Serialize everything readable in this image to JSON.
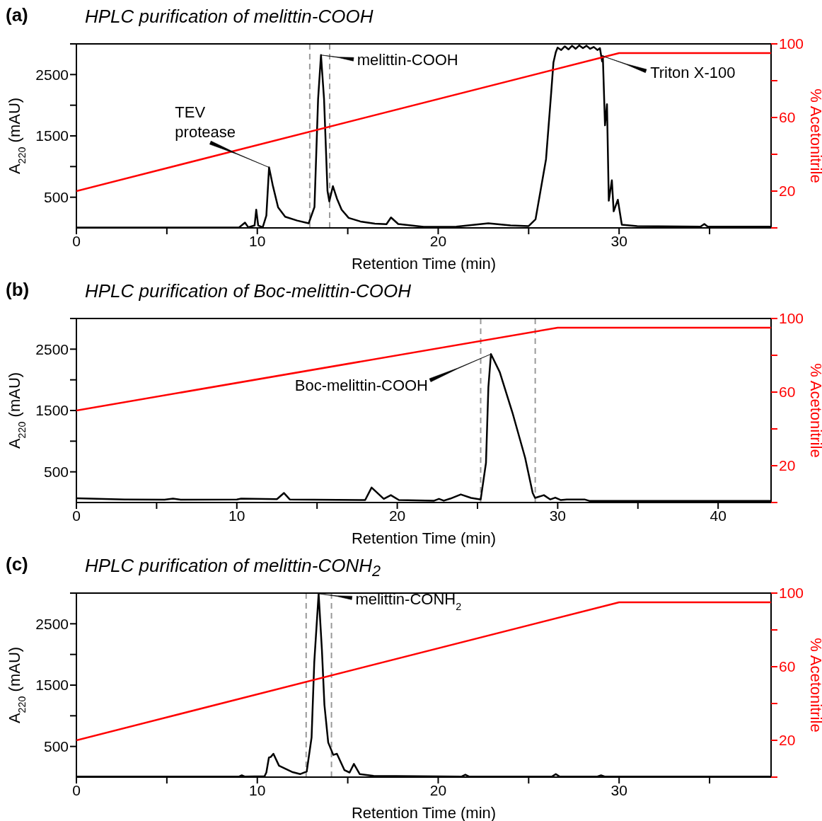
{
  "chart_data": [
    {
      "type": "line",
      "title": "HPLC purification of melittin-COOH",
      "xlabel": "Retention Time (min)",
      "ylabel": "A$_{220}$ (mAU)",
      "y2label": "% Acetonitrile",
      "marker": "none",
      "xlim": [
        0,
        38.4
      ],
      "xticks": [
        0,
        {
          "value": 5,
          "label": null
        },
        10,
        {
          "value": 15,
          "label": null
        },
        20,
        {
          "value": 25,
          "label": null
        },
        30,
        {
          "value": 35,
          "label": null
        }
      ],
      "ylim": [
        0,
        3000
      ],
      "yticks": [
        500,
        {
          "value": 1000,
          "label": null
        },
        1500,
        {
          "value": 2000,
          "label": null
        },
        2500,
        {
          "value": 3000,
          "label": null
        }
      ],
      "y2lim": [
        0,
        100
      ],
      "y2ticks": [
        {
          "value": 0,
          "label": null
        },
        20,
        {
          "value": 40,
          "label": null
        },
        60,
        {
          "value": 80,
          "label": null
        },
        100
      ],
      "series": [
        {
          "color": "#000000",
          "x": [
            0,
            5,
            9.0,
            9.32,
            9.5,
            9.85,
            9.94,
            10.05,
            10.3,
            10.5,
            10.65,
            10.85,
            11.15,
            11.54,
            12.2,
            12.84,
            13.16,
            13.36,
            13.52,
            13.69,
            13.88,
            13.98,
            14.18,
            14.4,
            14.66,
            15.05,
            15.7,
            16.5,
            17.14,
            17.39,
            17.79,
            19.2,
            21,
            22.77,
            24,
            25,
            25.38,
            25.96,
            26.25,
            26.37,
            26.5,
            26.6,
            26.8,
            27.0,
            27.2,
            27.4,
            27.6,
            27.8,
            28.0,
            28.2,
            28.4,
            28.6,
            28.8,
            28.94,
            29.06,
            29.1,
            29.22,
            29.33,
            29.43,
            29.6,
            29.7,
            29.93,
            30.15,
            31,
            34.5,
            34.71,
            34.9,
            38.4
          ],
          "values": [
            5,
            5,
            8,
            86,
            10,
            40,
            297,
            40,
            10,
            200,
            986,
            700,
            335,
            182,
            120,
            75,
            340,
            2098,
            2818,
            2098,
            603,
            431,
            680,
            480,
            297,
            163,
            105,
            70,
            60,
            170,
            63,
            17,
            20,
            75,
            40,
            30,
            140,
            1120,
            2223,
            2696,
            2865,
            2940,
            2900,
            2960,
            2910,
            2970,
            2920,
            2975,
            2930,
            2970,
            2920,
            2950,
            2900,
            2930,
            2715,
            2800,
            1672,
            2017,
            443,
            776,
            270,
            459,
            52,
            30,
            20,
            63,
            20,
            20
          ]
        },
        {
          "color": "#ff0000",
          "axis": "y2",
          "x": [
            0,
            30,
            38.4
          ],
          "values": [
            20,
            95,
            95
          ]
        }
      ],
      "ref_lines": [
        {
          "axis": "x",
          "value": 12.9,
          "color": "#999999",
          "line_style": "dashed"
        },
        {
          "axis": "x",
          "value": 14.0,
          "color": "#999999",
          "line_style": "dashed"
        }
      ],
      "annotations": [
        "(a)",
        {
          "text": "TEV\nprotease",
          "x": 10.65,
          "y": 986
        },
        {
          "text": "melittin-COOH",
          "x": 13.52,
          "y": 2818
        },
        {
          "text": "Triton X-100",
          "x": 29.1,
          "y": 2800
        }
      ]
    },
    {
      "type": "line",
      "title": "HPLC purification of Boc-melittin-COOH",
      "xlabel": "Retention Time (min)",
      "ylabel": "A$_{220}$ (mAU)",
      "y2label": "% Acetonitrile",
      "marker": "none",
      "xlim": [
        0,
        43.3
      ],
      "xticks": [
        0,
        {
          "value": 5,
          "label": null
        },
        10,
        {
          "value": 15,
          "label": null
        },
        20,
        {
          "value": 25,
          "label": null
        },
        30,
        {
          "value": 35,
          "label": null
        },
        40
      ],
      "ylim": [
        0,
        3000
      ],
      "yticks": [
        500,
        {
          "value": 1000,
          "label": null
        },
        1500,
        {
          "value": 2000,
          "label": null
        },
        2500,
        {
          "value": 3000,
          "label": null
        }
      ],
      "y2lim": [
        0,
        100
      ],
      "y2ticks": [
        {
          "value": 0,
          "label": null
        },
        20,
        {
          "value": 40,
          "label": null
        },
        60,
        {
          "value": 80,
          "label": null
        },
        100
      ],
      "series": [
        {
          "color": "#000000",
          "x": [
            0,
            3,
            5.5,
            6.02,
            6.5,
            10,
            10.27,
            12.5,
            12.94,
            13.3,
            18,
            18.4,
            19.16,
            19.6,
            20.1,
            22.3,
            22.6,
            22.9,
            23.3,
            23.96,
            24.6,
            25.2,
            25.53,
            25.68,
            25.84,
            26.39,
            27.18,
            27.97,
            28.44,
            28.59,
            29.14,
            29.54,
            29.85,
            30.2,
            30.56,
            31.67,
            32,
            43.3
          ],
          "values": [
            70,
            50,
            45,
            63,
            45,
            50,
            63,
            55,
            155,
            50,
            40,
            244,
            60,
            120,
            40,
            30,
            60,
            30,
            63,
            132,
            75,
            50,
            646,
            1880,
            2420,
            2124,
            1465,
            730,
            155,
            75,
            120,
            50,
            80,
            40,
            50,
            50,
            25,
            25
          ]
        },
        {
          "color": "#ff0000",
          "axis": "y2",
          "x": [
            0,
            30,
            43.3
          ],
          "values": [
            50,
            95,
            95
          ]
        }
      ],
      "ref_lines": [
        {
          "axis": "x",
          "value": 25.2,
          "color": "#999999",
          "line_style": "dashed"
        },
        {
          "axis": "x",
          "value": 28.6,
          "color": "#999999",
          "line_style": "dashed"
        }
      ],
      "annotations": [
        "(b)",
        {
          "text": "Boc-melittin-COOH",
          "x": 25.84,
          "y": 2420
        }
      ]
    },
    {
      "type": "line",
      "title": "HPLC purification of melittin-CONH$_{2}$",
      "xlabel": "Retention Time (min)",
      "ylabel": "A$_{220}$ (mAU)",
      "y2label": "% Acetonitrile",
      "marker": "none",
      "xlim": [
        0,
        38.4
      ],
      "xticks": [
        0,
        {
          "value": 5,
          "label": null
        },
        10,
        {
          "value": 15,
          "label": null
        },
        20,
        {
          "value": 25,
          "label": null
        },
        30,
        {
          "value": 35,
          "label": null
        }
      ],
      "ylim": [
        0,
        3000
      ],
      "yticks": [
        500,
        {
          "value": 1000,
          "label": null
        },
        1500,
        {
          "value": 2000,
          "label": null
        },
        2500,
        {
          "value": 3000,
          "label": null
        }
      ],
      "y2lim": [
        0,
        100
      ],
      "y2ticks": [
        {
          "value": 0,
          "label": null
        },
        20,
        {
          "value": 40,
          "label": null
        },
        60,
        {
          "value": 80,
          "label": null
        },
        100
      ],
      "series": [
        {
          "color": "#000000",
          "x": [
            0,
            9,
            9.14,
            9.3,
            10.4,
            10.5,
            10.64,
            10.75,
            10.89,
            11.2,
            11.96,
            12.38,
            12.73,
            13.0,
            13.15,
            13.39,
            13.57,
            13.71,
            13.92,
            14.2,
            14.4,
            14.82,
            15.1,
            15.34,
            15.66,
            16.43,
            21.3,
            21.5,
            21.7,
            26.3,
            26.5,
            26.7,
            28.8,
            29,
            29.2,
            38.4
          ],
          "values": [
            10,
            10,
            30,
            10,
            15,
            75,
            317,
            330,
            380,
            186,
            80,
            50,
            90,
            646,
            1880,
            2990,
            2083,
            1179,
            564,
            362,
            380,
            113,
            75,
            215,
            50,
            20,
            10,
            40,
            10,
            10,
            50,
            10,
            10,
            30,
            10,
            10
          ]
        },
        {
          "color": "#ff0000",
          "axis": "y2",
          "x": [
            0,
            30,
            38.4
          ],
          "values": [
            20,
            95,
            95
          ]
        }
      ],
      "ref_lines": [
        {
          "axis": "x",
          "value": 12.7,
          "color": "#999999",
          "line_style": "dashed"
        },
        {
          "axis": "x",
          "value": 14.1,
          "color": "#999999",
          "line_style": "dashed"
        }
      ],
      "annotations": [
        "(c)",
        {
          "text": "melittin-CONH$_{2}$",
          "x": 13.39,
          "y": 2990
        }
      ]
    }
  ]
}
